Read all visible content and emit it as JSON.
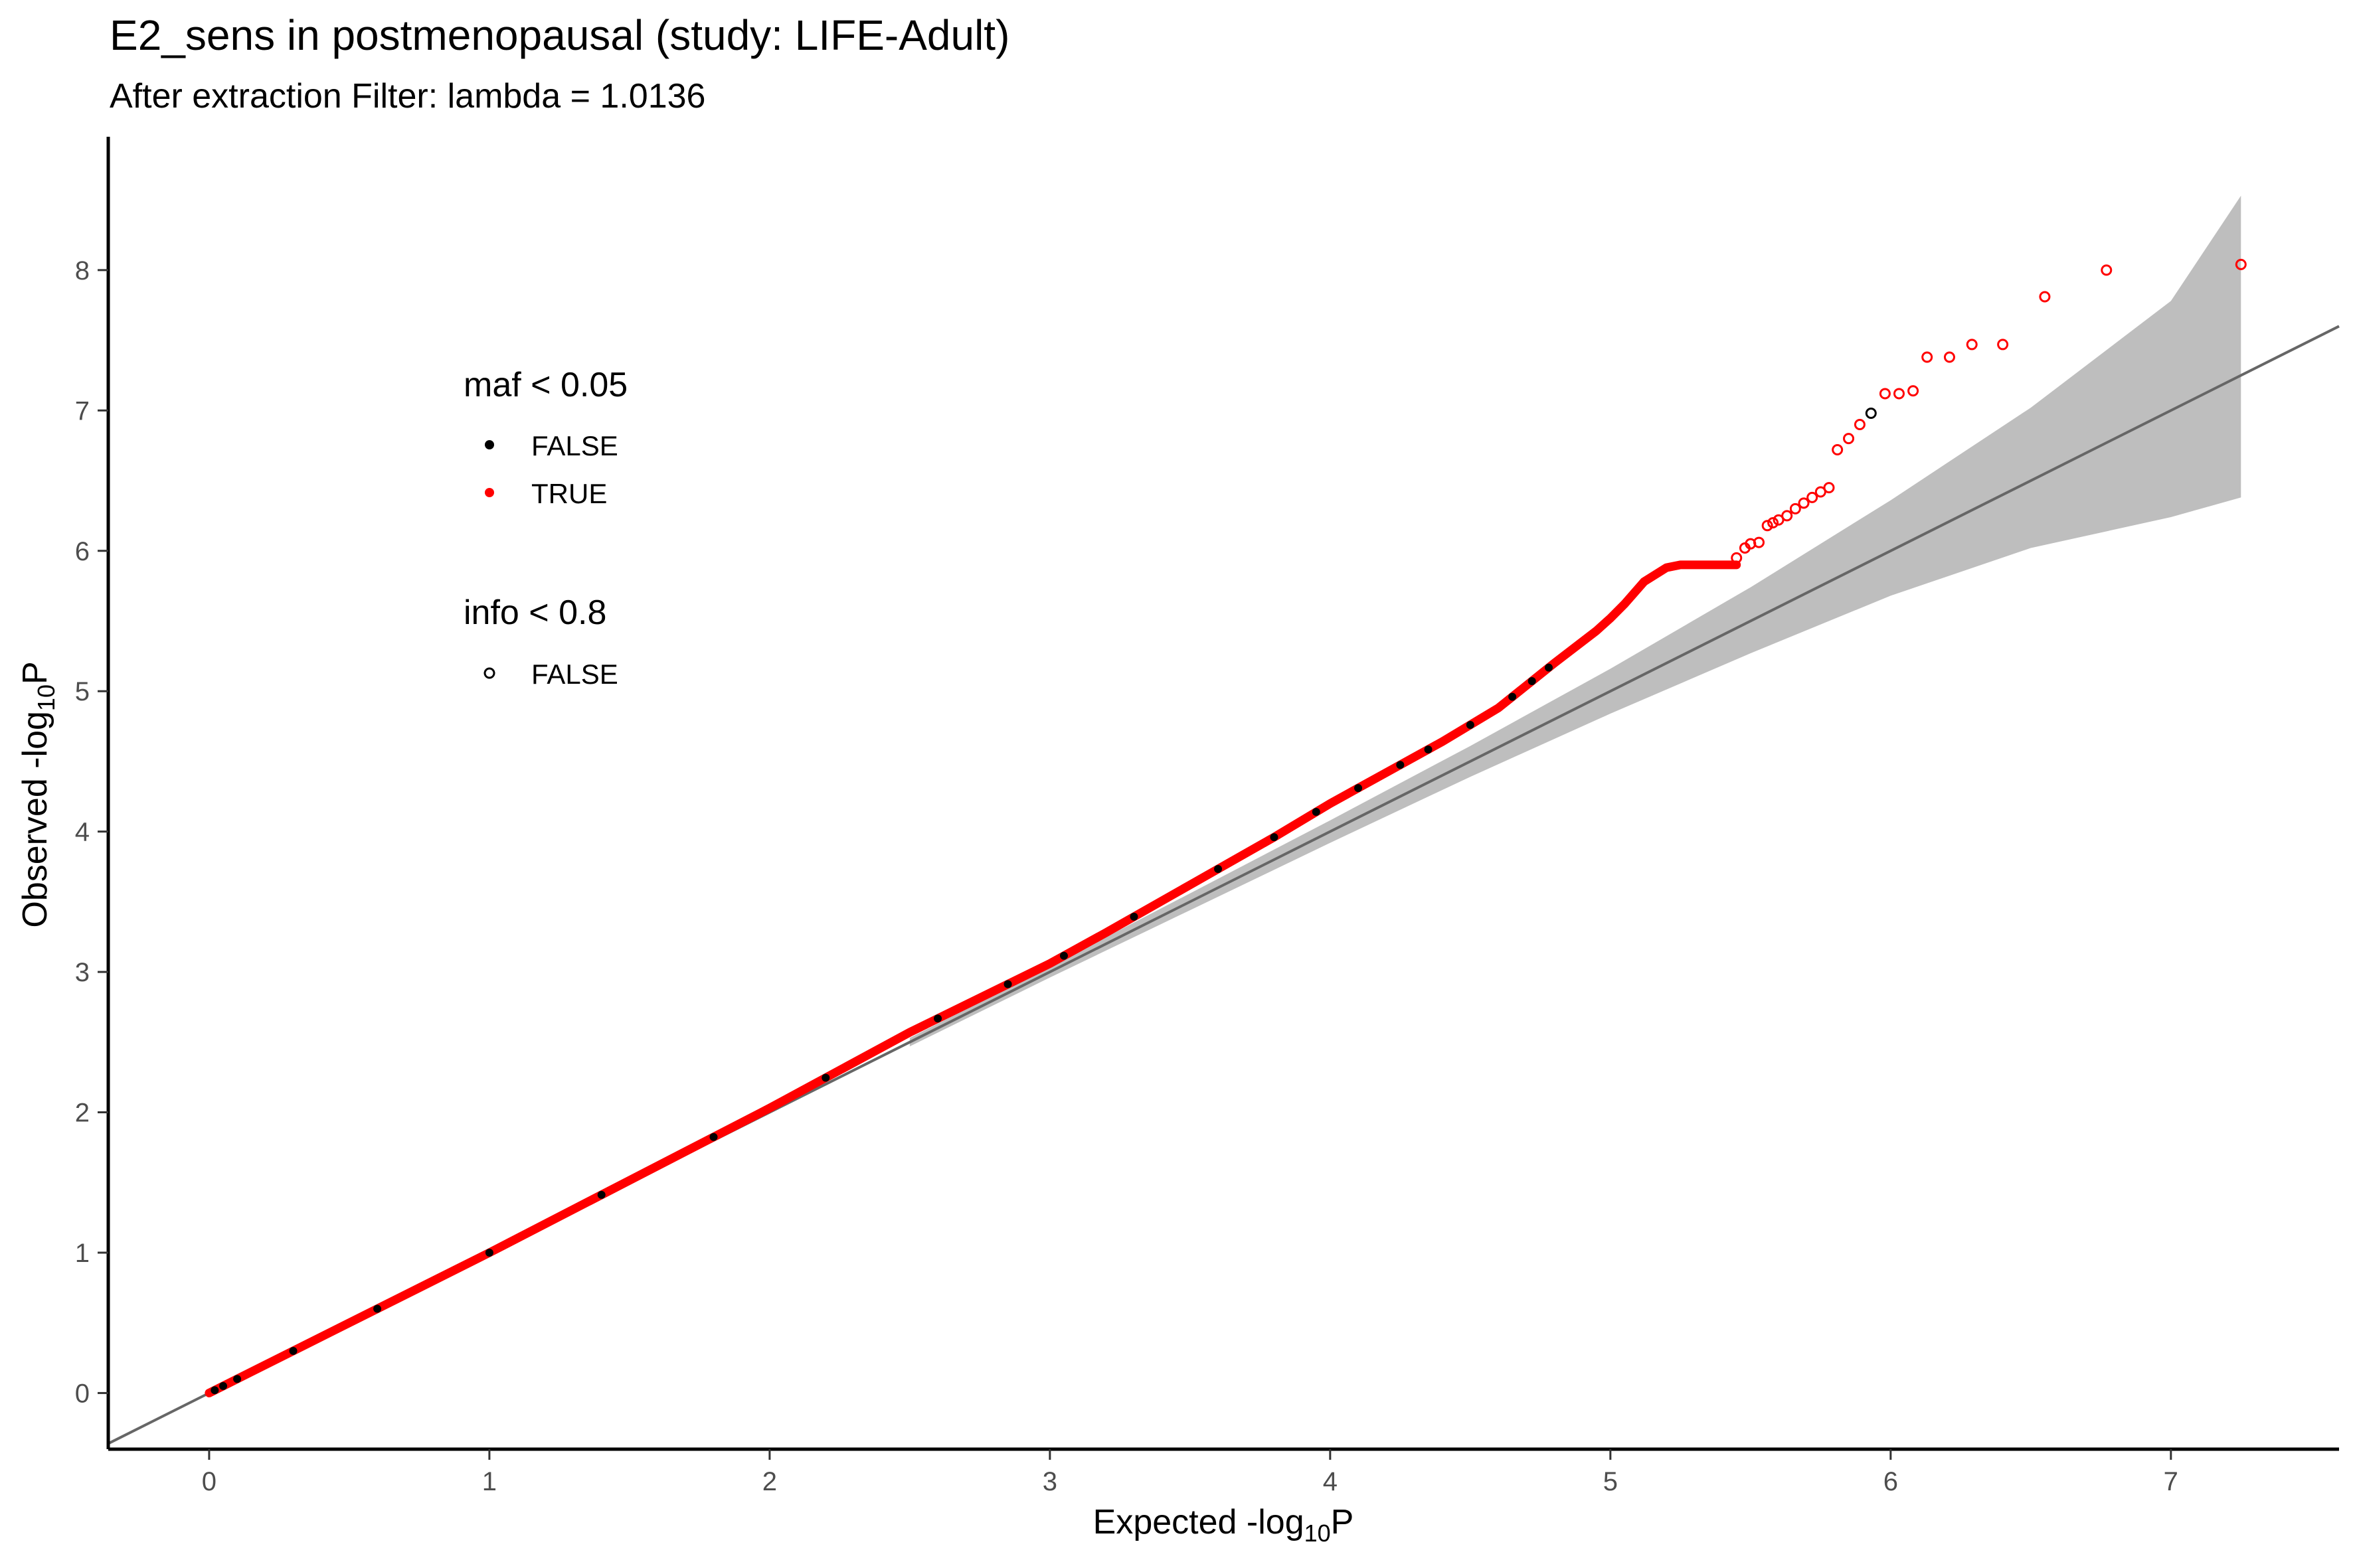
{
  "chart_data": {
    "type": "scatter",
    "title": "E2_sens in postmenopausal (study: LIFE-Adult)",
    "subtitle": "After extraction Filter: lambda =  1.0136",
    "xlabel": {
      "prefix": "Expected -log",
      "sub": "10",
      "suffix": "P"
    },
    "ylabel": {
      "prefix": "Observed -log",
      "sub": "10",
      "suffix": "P"
    },
    "xlim": [
      -0.36,
      7.6
    ],
    "ylim": [
      -0.4,
      8.95
    ],
    "xticks": [
      "0",
      "1",
      "2",
      "3",
      "4",
      "5",
      "6",
      "7"
    ],
    "yticks": [
      "0",
      "1",
      "2",
      "3",
      "4",
      "5",
      "6",
      "7",
      "8"
    ],
    "colors": {
      "maf_false": "#000000",
      "maf_true": "#ff0000",
      "band": "#bebebe",
      "reference_line": "#666666"
    },
    "confidence_band": {
      "x": [
        2.5,
        3.0,
        3.5,
        4.0,
        4.5,
        5.0,
        5.5,
        6.0,
        6.5,
        7.0,
        7.25
      ],
      "upper": [
        2.53,
        3.04,
        3.56,
        4.08,
        4.61,
        5.16,
        5.74,
        6.36,
        7.02,
        7.78,
        8.53
      ],
      "lower": [
        2.47,
        2.96,
        3.44,
        3.92,
        4.39,
        4.84,
        5.27,
        5.68,
        6.02,
        6.24,
        6.38
      ]
    },
    "reference_line": {
      "slope": 1,
      "intercept": 0
    },
    "dense_curve": {
      "x": [
        0,
        1,
        2,
        2.5,
        3.0,
        3.2,
        3.5,
        3.8,
        4.0,
        4.2,
        4.4,
        4.6,
        4.8,
        4.95,
        5.0,
        5.05,
        5.12,
        5.2,
        5.25,
        5.3,
        5.4,
        5.45
      ],
      "y": [
        0,
        1.0,
        2.03,
        2.57,
        3.06,
        3.28,
        3.62,
        3.96,
        4.2,
        4.42,
        4.64,
        4.88,
        5.2,
        5.43,
        5.52,
        5.62,
        5.78,
        5.88,
        5.9,
        5.9,
        5.9,
        5.9
      ]
    },
    "black_dots_on_curve": [
      0.02,
      0.05,
      0.1,
      0.3,
      0.6,
      1.0,
      1.4,
      1.8,
      2.2,
      2.6,
      2.85,
      3.05,
      3.3,
      3.6,
      3.8,
      3.95,
      4.1,
      4.25,
      4.35,
      4.5,
      4.65,
      4.72,
      4.78
    ],
    "sparse_points": [
      {
        "x": 5.45,
        "y": 5.95,
        "maf": "TRUE"
      },
      {
        "x": 5.48,
        "y": 6.02,
        "maf": "TRUE"
      },
      {
        "x": 5.5,
        "y": 6.05,
        "maf": "TRUE"
      },
      {
        "x": 5.53,
        "y": 6.06,
        "maf": "TRUE"
      },
      {
        "x": 5.56,
        "y": 6.18,
        "maf": "TRUE"
      },
      {
        "x": 5.58,
        "y": 6.2,
        "maf": "TRUE"
      },
      {
        "x": 5.6,
        "y": 6.22,
        "maf": "TRUE"
      },
      {
        "x": 5.63,
        "y": 6.25,
        "maf": "TRUE"
      },
      {
        "x": 5.66,
        "y": 6.3,
        "maf": "TRUE"
      },
      {
        "x": 5.69,
        "y": 6.34,
        "maf": "TRUE"
      },
      {
        "x": 5.72,
        "y": 6.38,
        "maf": "TRUE"
      },
      {
        "x": 5.75,
        "y": 6.42,
        "maf": "TRUE"
      },
      {
        "x": 5.78,
        "y": 6.45,
        "maf": "TRUE"
      },
      {
        "x": 5.81,
        "y": 6.72,
        "maf": "TRUE"
      },
      {
        "x": 5.85,
        "y": 6.8,
        "maf": "TRUE"
      },
      {
        "x": 5.89,
        "y": 6.9,
        "maf": "TRUE"
      },
      {
        "x": 5.93,
        "y": 6.98,
        "maf": "FALSE"
      },
      {
        "x": 5.98,
        "y": 7.12,
        "maf": "TRUE"
      },
      {
        "x": 6.03,
        "y": 7.12,
        "maf": "TRUE"
      },
      {
        "x": 6.08,
        "y": 7.14,
        "maf": "TRUE"
      },
      {
        "x": 6.13,
        "y": 7.38,
        "maf": "TRUE"
      },
      {
        "x": 6.21,
        "y": 7.38,
        "maf": "TRUE"
      },
      {
        "x": 6.29,
        "y": 7.47,
        "maf": "TRUE"
      },
      {
        "x": 6.4,
        "y": 7.47,
        "maf": "TRUE"
      },
      {
        "x": 6.55,
        "y": 7.81,
        "maf": "TRUE"
      },
      {
        "x": 6.77,
        "y": 8.0,
        "maf": "TRUE"
      },
      {
        "x": 7.25,
        "y": 8.04,
        "maf": "TRUE"
      }
    ],
    "legend": {
      "placement": "top-left inside",
      "maf": {
        "title": "maf < 0.05",
        "entries": [
          "FALSE",
          "TRUE"
        ]
      },
      "info": {
        "title": "info < 0.8",
        "entries": [
          "FALSE"
        ]
      }
    }
  }
}
